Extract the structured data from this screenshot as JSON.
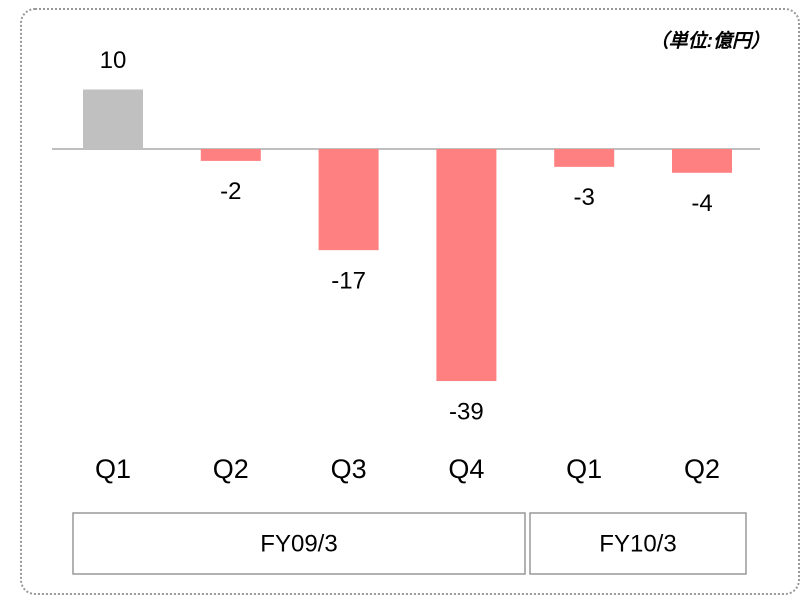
{
  "chart_data": {
    "type": "bar",
    "annotation": "（単位:億円）",
    "categories": [
      "Q1",
      "Q2",
      "Q3",
      "Q4",
      "Q1",
      "Q2"
    ],
    "values": [
      10,
      -2,
      -17,
      -39,
      -3,
      -4
    ],
    "colors": [
      "#c0c0c0",
      "#ff8080",
      "#ff8080",
      "#ff8080",
      "#ff8080",
      "#ff8080"
    ],
    "groups": [
      "FY09/3",
      "FY10/3"
    ]
  }
}
